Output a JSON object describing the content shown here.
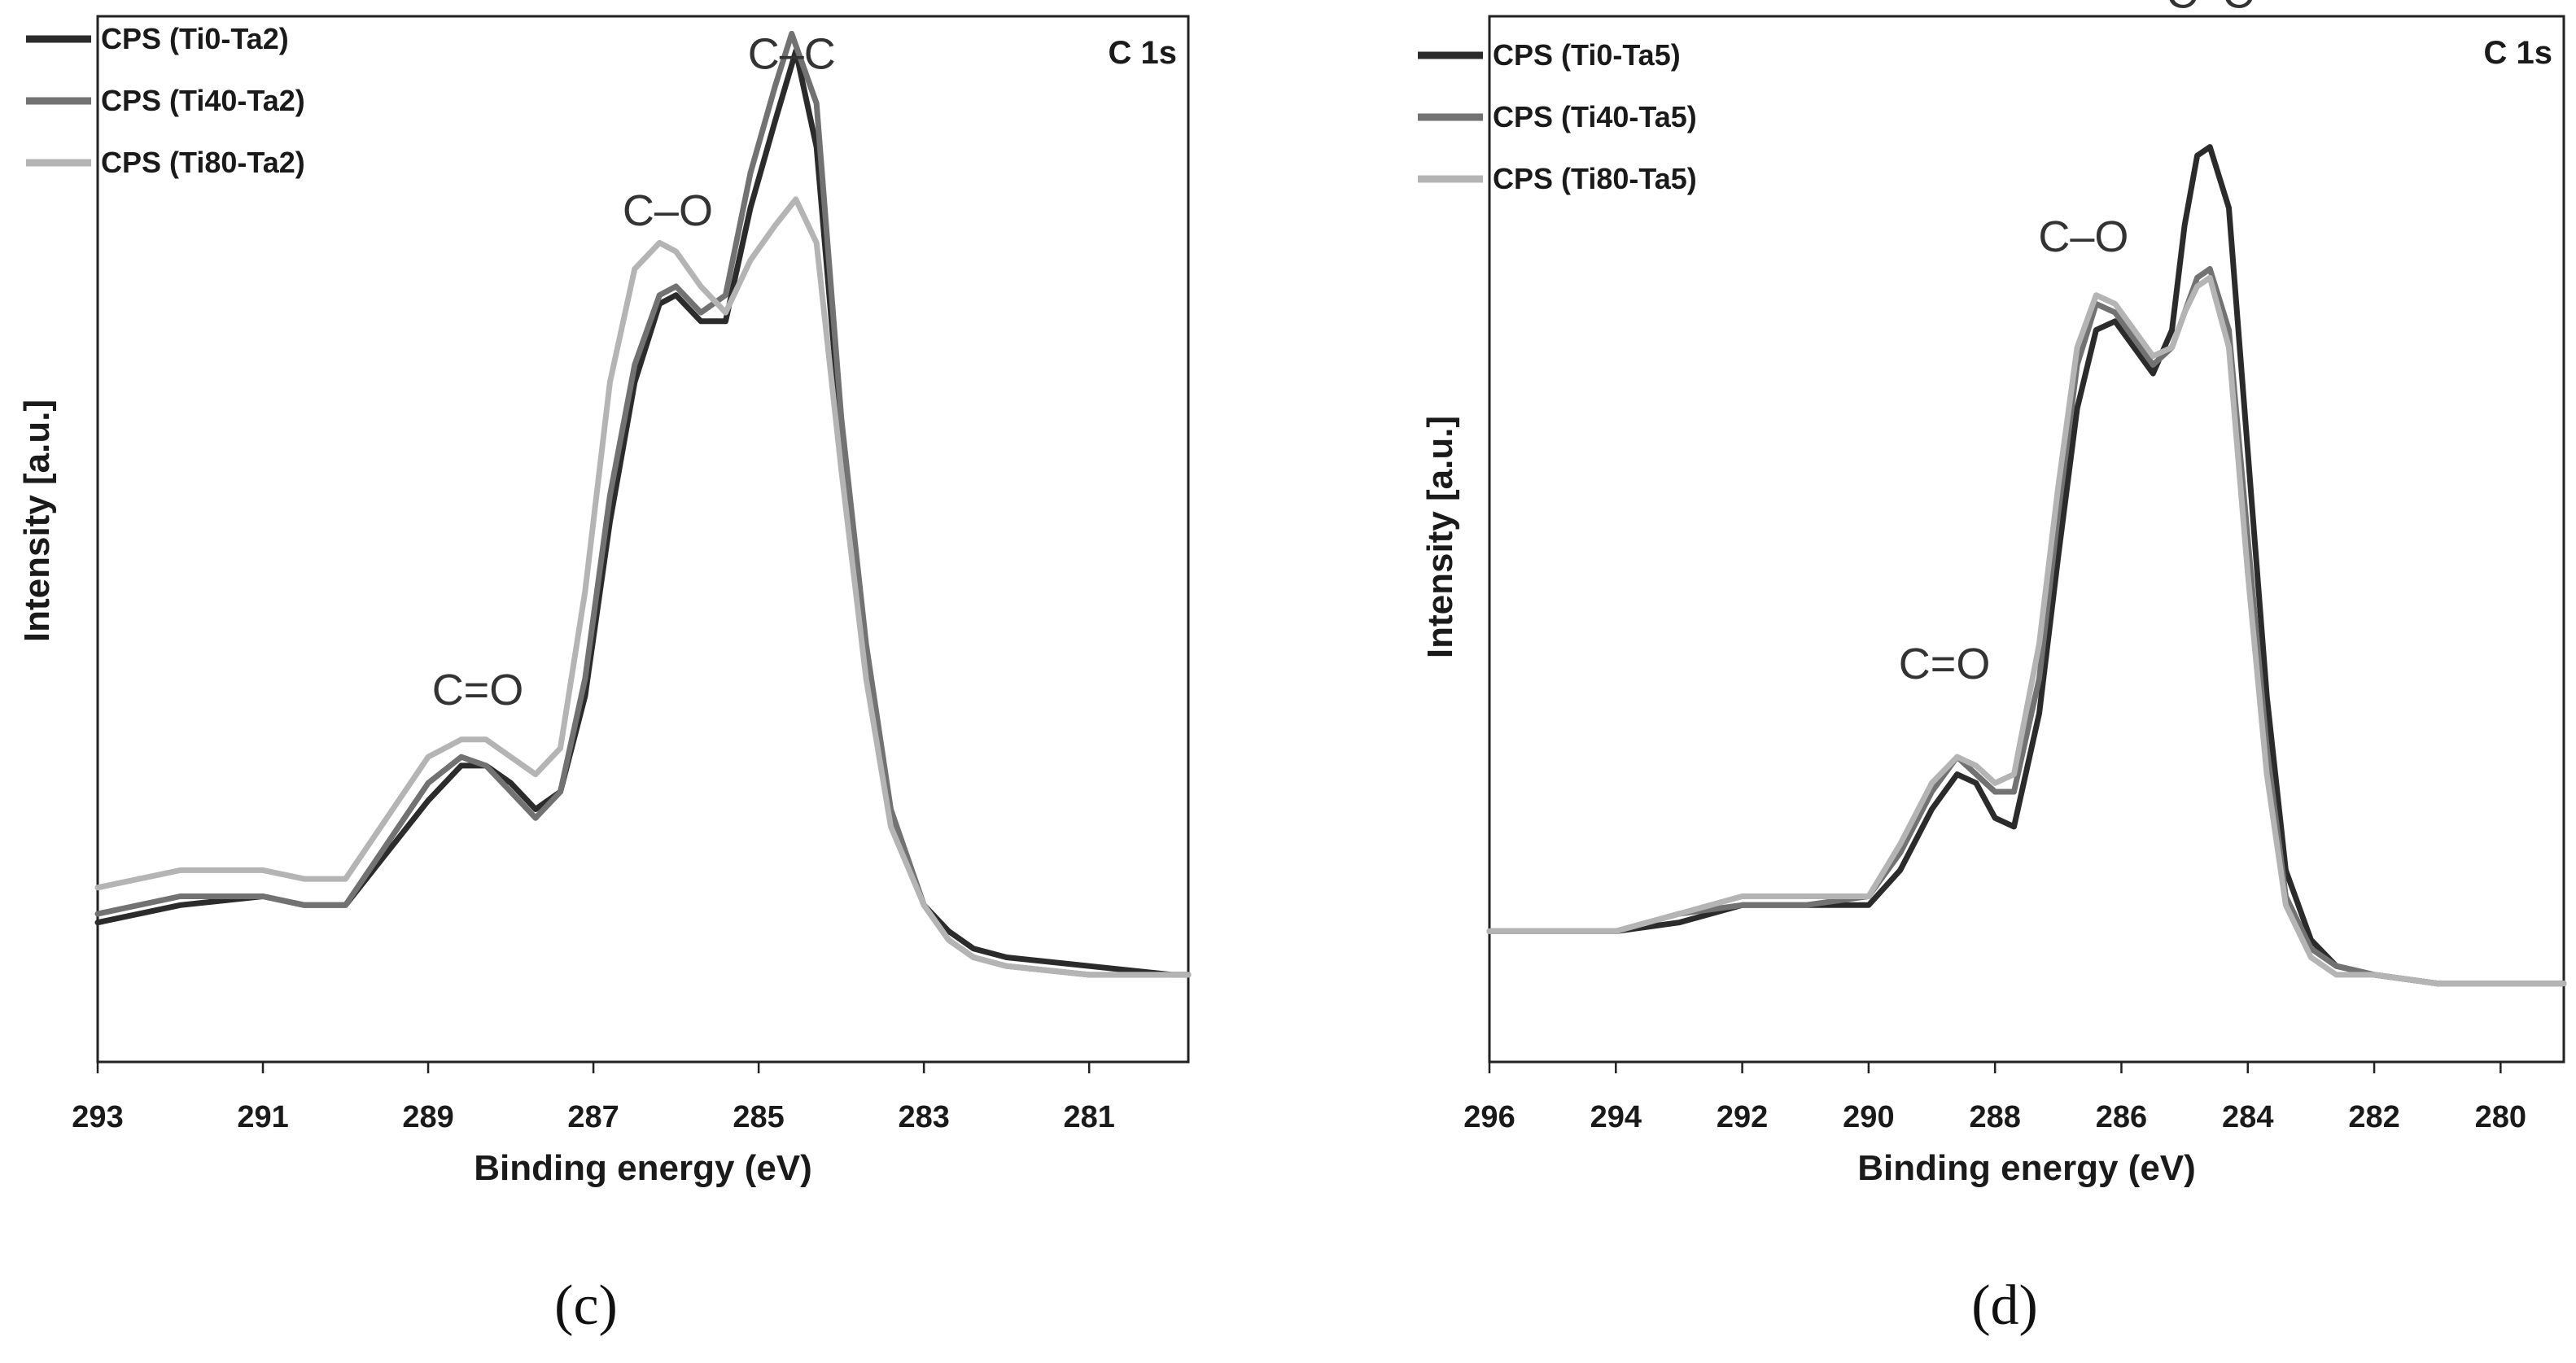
{
  "chart_data": [
    {
      "type": "line",
      "panel_label": "(c)",
      "corner_label": "C 1s",
      "xlabel": "Binding energy (eV)",
      "ylabel": "Intensity [a.u.]",
      "xlim": [
        293,
        279.8
      ],
      "ylim": [
        0,
        1.2
      ],
      "x_ticks": [
        293,
        291,
        289,
        287,
        285,
        283,
        281
      ],
      "annotations": [
        {
          "text": "C=O",
          "x": 288.4,
          "y": 0.41
        },
        {
          "text": "C–O",
          "x": 286.1,
          "y": 0.96
        },
        {
          "text": "C–C",
          "x": 284.6,
          "y": 1.14
        }
      ],
      "series": [
        {
          "name": "CPS (Ti0-Ta2)",
          "color": "#2b2b2b",
          "x": [
            293,
            292,
            291,
            290.5,
            290,
            289.5,
            289,
            288.6,
            288.3,
            288,
            287.7,
            287.4,
            287.1,
            286.8,
            286.5,
            286.2,
            286.0,
            285.7,
            285.4,
            285.1,
            284.8,
            284.55,
            284.3,
            284.0,
            283.7,
            283.4,
            283.0,
            282.7,
            282.4,
            282,
            281,
            280,
            279.8
          ],
          "y": [
            0.16,
            0.18,
            0.19,
            0.18,
            0.18,
            0.24,
            0.3,
            0.34,
            0.34,
            0.32,
            0.29,
            0.31,
            0.42,
            0.62,
            0.78,
            0.87,
            0.88,
            0.85,
            0.85,
            0.98,
            1.08,
            1.16,
            1.05,
            0.72,
            0.46,
            0.28,
            0.18,
            0.15,
            0.13,
            0.12,
            0.11,
            0.1,
            0.1
          ]
        },
        {
          "name": "CPS (Ti40-Ta2)",
          "color": "#727272",
          "x": [
            293,
            292,
            291,
            290.5,
            290,
            289.5,
            289,
            288.6,
            288.3,
            288,
            287.7,
            287.4,
            287.1,
            286.8,
            286.5,
            286.2,
            286.0,
            285.7,
            285.4,
            285.1,
            284.8,
            284.6,
            284.3,
            284.0,
            283.7,
            283.4,
            283.0,
            282.7,
            282.4,
            282,
            281,
            280,
            279.8
          ],
          "y": [
            0.17,
            0.19,
            0.19,
            0.18,
            0.18,
            0.25,
            0.32,
            0.35,
            0.34,
            0.31,
            0.28,
            0.31,
            0.44,
            0.65,
            0.8,
            0.88,
            0.89,
            0.86,
            0.88,
            1.02,
            1.12,
            1.18,
            1.1,
            0.74,
            0.48,
            0.29,
            0.18,
            0.14,
            0.12,
            0.11,
            0.1,
            0.1,
            0.1
          ]
        },
        {
          "name": "CPS (Ti80-Ta2)",
          "color": "#b4b4b4",
          "x": [
            293,
            292,
            291,
            290.5,
            290,
            289.5,
            289,
            288.6,
            288.3,
            288,
            287.7,
            287.4,
            287.1,
            286.8,
            286.5,
            286.2,
            286.0,
            285.7,
            285.4,
            285.1,
            284.8,
            284.55,
            284.3,
            284.0,
            283.7,
            283.4,
            283.0,
            282.7,
            282.4,
            282,
            281,
            280,
            279.8
          ],
          "y": [
            0.2,
            0.22,
            0.22,
            0.21,
            0.21,
            0.28,
            0.35,
            0.37,
            0.37,
            0.35,
            0.33,
            0.36,
            0.54,
            0.78,
            0.91,
            0.94,
            0.93,
            0.89,
            0.86,
            0.92,
            0.96,
            0.99,
            0.94,
            0.68,
            0.44,
            0.27,
            0.18,
            0.14,
            0.12,
            0.11,
            0.1,
            0.1,
            0.1
          ]
        }
      ]
    },
    {
      "type": "line",
      "panel_label": "(d)",
      "corner_label": "C 1s",
      "xlabel": "Binding energy (eV)",
      "ylabel": "Intensity [a.u.]",
      "xlim": [
        296,
        279
      ],
      "ylim": [
        0,
        1.2
      ],
      "x_ticks": [
        296,
        294,
        292,
        290,
        288,
        286,
        284,
        282,
        280
      ],
      "annotations": [
        {
          "text": "C=O",
          "x": 288.8,
          "y": 0.44
        },
        {
          "text": "C–O",
          "x": 286.6,
          "y": 0.93
        },
        {
          "text": "C–C",
          "x": 284.6,
          "y": 1.21
        }
      ],
      "series": [
        {
          "name": "CPS (Ti0-Ta5)",
          "color": "#2b2b2b",
          "x": [
            296,
            294,
            293,
            292,
            291,
            290,
            289.5,
            289,
            288.6,
            288.3,
            288.0,
            287.7,
            287.3,
            287.0,
            286.7,
            286.4,
            286.1,
            285.8,
            285.5,
            285.2,
            285.0,
            284.8,
            284.6,
            284.3,
            284.0,
            283.7,
            283.4,
            283.0,
            282.6,
            282,
            281,
            280,
            279
          ],
          "y": [
            0.15,
            0.15,
            0.16,
            0.18,
            0.18,
            0.18,
            0.22,
            0.29,
            0.33,
            0.32,
            0.28,
            0.27,
            0.4,
            0.58,
            0.75,
            0.84,
            0.85,
            0.82,
            0.79,
            0.84,
            0.96,
            1.04,
            1.05,
            0.98,
            0.7,
            0.42,
            0.22,
            0.14,
            0.11,
            0.1,
            0.09,
            0.09,
            0.09
          ]
        },
        {
          "name": "CPS (Ti40-Ta5)",
          "color": "#727272",
          "x": [
            296,
            294,
            293,
            292,
            291,
            290,
            289.5,
            289,
            288.6,
            288.3,
            288.0,
            287.7,
            287.3,
            287.0,
            286.7,
            286.4,
            286.1,
            285.8,
            285.5,
            285.2,
            285.0,
            284.8,
            284.6,
            284.3,
            284.0,
            283.7,
            283.4,
            283.0,
            282.6,
            282,
            281,
            280,
            279
          ],
          "y": [
            0.15,
            0.15,
            0.17,
            0.18,
            0.18,
            0.19,
            0.24,
            0.31,
            0.35,
            0.33,
            0.31,
            0.31,
            0.44,
            0.63,
            0.8,
            0.87,
            0.86,
            0.83,
            0.8,
            0.82,
            0.86,
            0.9,
            0.91,
            0.84,
            0.6,
            0.36,
            0.19,
            0.13,
            0.11,
            0.1,
            0.09,
            0.09,
            0.09
          ]
        },
        {
          "name": "CPS (Ti80-Ta5)",
          "color": "#b4b4b4",
          "x": [
            296,
            294,
            293,
            292,
            291,
            290,
            289.5,
            289,
            288.6,
            288.3,
            288.0,
            287.7,
            287.3,
            287.0,
            286.7,
            286.4,
            286.1,
            285.8,
            285.5,
            285.2,
            285.0,
            284.8,
            284.6,
            284.3,
            284.0,
            283.7,
            283.4,
            283.0,
            282.6,
            282,
            281,
            280,
            279
          ],
          "y": [
            0.15,
            0.15,
            0.17,
            0.19,
            0.19,
            0.19,
            0.25,
            0.32,
            0.35,
            0.34,
            0.32,
            0.33,
            0.48,
            0.66,
            0.82,
            0.88,
            0.87,
            0.84,
            0.81,
            0.82,
            0.86,
            0.89,
            0.9,
            0.82,
            0.56,
            0.33,
            0.18,
            0.12,
            0.1,
            0.1,
            0.09,
            0.09,
            0.09
          ]
        }
      ]
    }
  ]
}
